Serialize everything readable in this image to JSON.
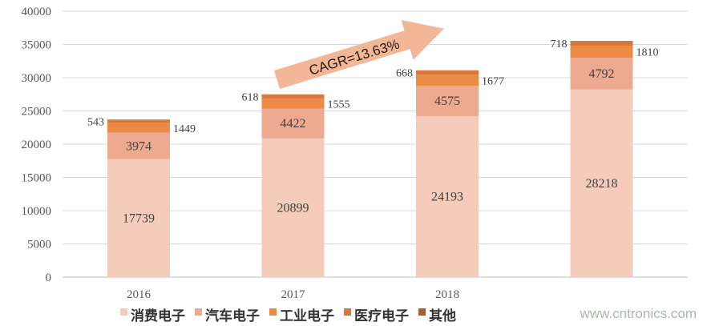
{
  "chart_data": {
    "type": "bar",
    "stacked": true,
    "categories": [
      "2016",
      "2017",
      "2018",
      ""
    ],
    "series": [
      {
        "name": "消费电子",
        "values": [
          17739,
          20899,
          24193,
          28218
        ],
        "color": "#f5cbbb"
      },
      {
        "name": "汽车电子",
        "values": [
          3974,
          4422,
          4575,
          4792
        ],
        "color": "#eeaa8e"
      },
      {
        "name": "工业电子",
        "values": [
          1449,
          1555,
          1677,
          1810
        ],
        "color": "#ec8b45"
      },
      {
        "name": "医疗电子",
        "values": [
          543,
          618,
          668,
          718
        ],
        "color": "#d8773a"
      },
      {
        "name": "其他",
        "values": [
          0,
          0,
          0,
          0
        ],
        "color": "#a95f2c"
      }
    ],
    "ylim": [
      0,
      40000
    ],
    "yticks": [
      0,
      5000,
      10000,
      15000,
      20000,
      25000,
      30000,
      35000,
      40000
    ],
    "grid": true,
    "legend": "bottom",
    "annotation": "CAGR=13.63%",
    "annotation_color": "#f2b797"
  },
  "watermark": "www.cntronics.com"
}
